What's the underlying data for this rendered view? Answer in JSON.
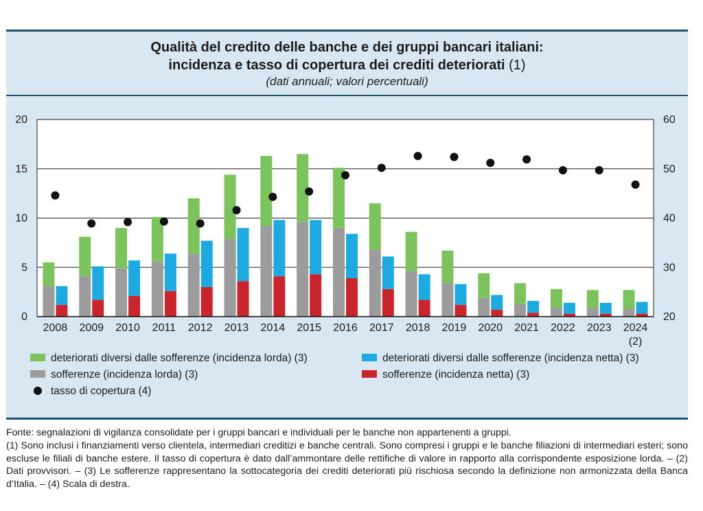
{
  "title": {
    "line1": "Qualità del credito delle banche e dei gruppi bancari italiani:",
    "line2_bold": "incidenza e tasso di copertura dei crediti deteriorati",
    "line2_note": "(1)",
    "subtitle": "(dati annuali; valori percentuali)"
  },
  "colors": {
    "panel_bg": "#d8e7f1",
    "rule": "#1f4e6e",
    "green": "#7dc35d",
    "gray": "#9c9c9c",
    "blue": "#1fa9e1",
    "red": "#c8262c",
    "dot": "#111111"
  },
  "chart_data": {
    "type": "bar",
    "categories": [
      "2008",
      "2009",
      "2010",
      "2011",
      "2012",
      "2013",
      "2014",
      "2015",
      "2016",
      "2017",
      "2018",
      "2019",
      "2020",
      "2021",
      "2022",
      "2023",
      "2024"
    ],
    "category_notes": {
      "2024": "(2)"
    },
    "ylim_left": [
      0,
      20
    ],
    "yticks_left": [
      0,
      5,
      10,
      15,
      20
    ],
    "ylim_right": [
      20,
      60
    ],
    "yticks_right": [
      20,
      30,
      40,
      50,
      60
    ],
    "grid": true,
    "series": [
      {
        "name": "sofferenze (incidenza lorda) (3)",
        "role": "gross-bottom",
        "color": "gray",
        "values": [
          3.1,
          4.1,
          4.9,
          5.6,
          6.4,
          7.9,
          9.2,
          9.6,
          9.0,
          6.8,
          4.6,
          3.4,
          1.9,
          1.3,
          0.9,
          0.9,
          0.8
        ]
      },
      {
        "name": "deteriorati diversi dalle sofferenze (incidenza lorda) (3)",
        "role": "gross-top",
        "color": "green",
        "values": [
          2.4,
          4.0,
          4.1,
          4.5,
          5.6,
          6.5,
          7.1,
          6.9,
          6.1,
          4.7,
          4.0,
          3.3,
          2.5,
          2.1,
          1.9,
          1.8,
          1.9
        ]
      },
      {
        "name": "sofferenze (incidenza netta) (3)",
        "role": "net-bottom",
        "color": "red",
        "values": [
          1.2,
          1.7,
          2.1,
          2.6,
          3.0,
          3.6,
          4.1,
          4.3,
          3.9,
          2.8,
          1.7,
          1.2,
          0.7,
          0.4,
          0.3,
          0.3,
          0.3
        ]
      },
      {
        "name": "deteriorati diversi dalle sofferenze (incidenza netta) (3)",
        "role": "net-top",
        "color": "blue",
        "values": [
          1.9,
          3.4,
          3.6,
          3.8,
          4.7,
          5.4,
          5.7,
          5.5,
          4.5,
          3.3,
          2.6,
          2.1,
          1.5,
          1.2,
          1.1,
          1.1,
          1.2
        ]
      },
      {
        "name": "tasso di copertura (4)",
        "role": "coverage",
        "color": "dot",
        "axis": "right",
        "values": [
          44.6,
          38.9,
          39.2,
          39.3,
          38.9,
          41.6,
          44.3,
          45.4,
          48.7,
          50.2,
          52.6,
          52.4,
          51.2,
          51.9,
          49.7,
          49.7,
          46.8
        ]
      }
    ],
    "legend": [
      {
        "label": "deteriorati diversi dalle sofferenze (incidenza lorda) (3)",
        "marker": "square",
        "color": "green"
      },
      {
        "label": "deteriorati diversi dalle sofferenze (incidenza netta) (3)",
        "marker": "square",
        "color": "blue"
      },
      {
        "label": "sofferenze (incidenza lorda) (3)",
        "marker": "square",
        "color": "gray"
      },
      {
        "label": "sofferenze (incidenza netta) (3)",
        "marker": "square",
        "color": "red"
      },
      {
        "label": "tasso di copertura (4)",
        "marker": "dot",
        "color": "dot"
      }
    ],
    "legend_placement": "bottom"
  },
  "notes": {
    "fonte": "Fonte: segnalazioni di vigilanza consolidate per i gruppi bancari e individuali per le banche non appartenenti a gruppi.",
    "body": "(1) Sono inclusi i finanziamenti verso clientela, intermediari creditizi e banche centrali. Sono compresi i gruppi e le banche filiazioni di intermediari esteri; sono escluse le filiali di banche estere. Il tasso di copertura è dato dall’ammontare delle rettifiche di valore in rapporto alla corrispondente esposizione lorda. – (2) Dati provvisori. – (3) Le sofferenze rappresentano la sottocategoria dei crediti deteriorati più rischiosa secondo la definizione non armonizzata della Banca d’Italia. – (4) Scala di destra."
  }
}
